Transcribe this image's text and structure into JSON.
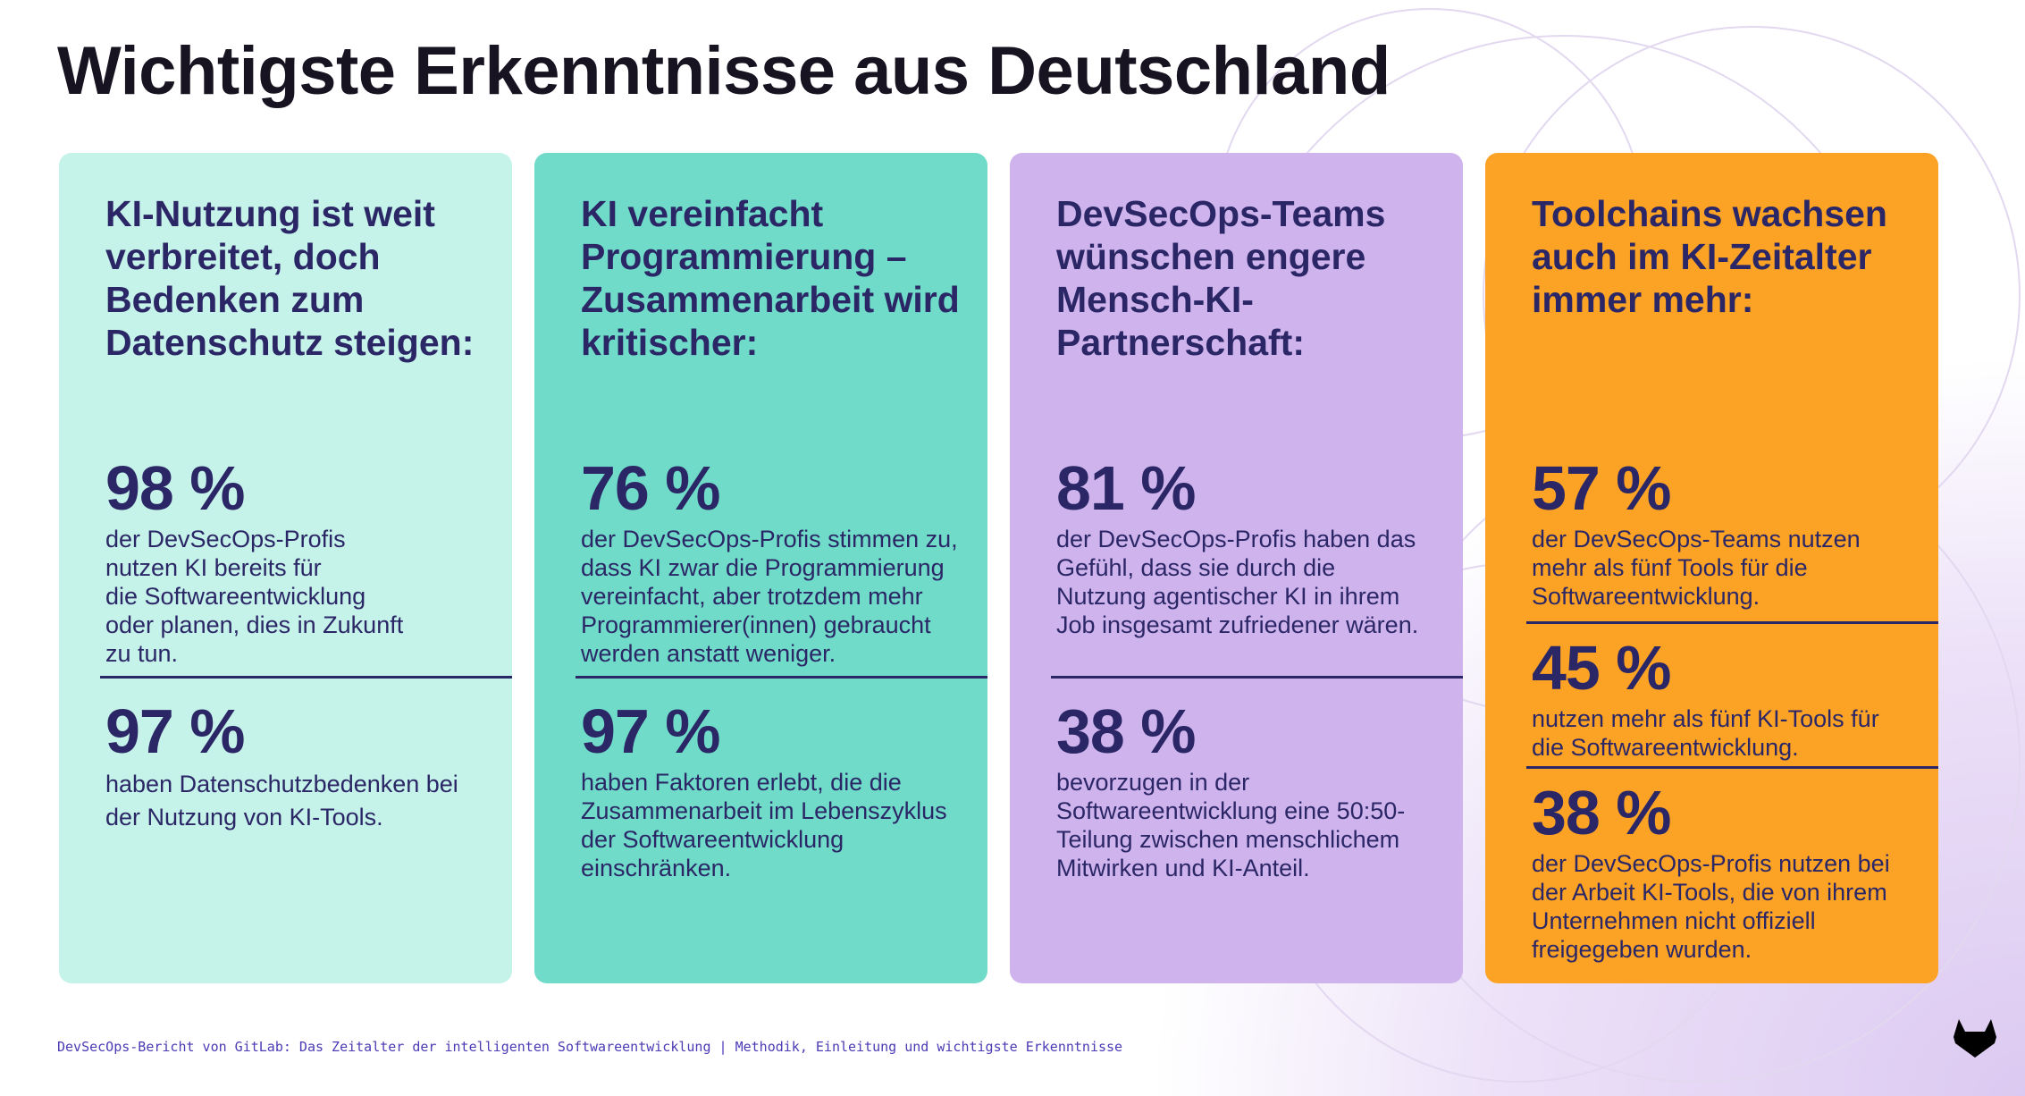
{
  "title": "Wichtigste Erkenntnisse aus Deutschland",
  "colors": {
    "card1": "#c5f2e9",
    "card2": "#6fdbc8",
    "card3": "#cfb3ed",
    "card4": "#fca326",
    "text": "#2b2766"
  },
  "cards": [
    {
      "heading": [
        "KI-Nutzung ist weit",
        "verbreitet, doch",
        "Bedenken zum",
        "Datenschutz steigen:"
      ],
      "stats": [
        {
          "value": "98 %",
          "text": [
            "der DevSecOps-Profis",
            "nutzen KI bereits für",
            "die Softwareentwicklung",
            "oder planen, dies in Zukunft",
            "zu tun."
          ]
        },
        {
          "value": "97 %",
          "text": [
            "haben Datenschutzbedenken bei",
            "der Nutzung von KI-Tools."
          ]
        }
      ]
    },
    {
      "heading": [
        "KI vereinfacht",
        "Programmierung –",
        "Zusammenarbeit wird",
        "kritischer:"
      ],
      "stats": [
        {
          "value": "76 %",
          "text": [
            "der DevSecOps-Profis stimmen zu,",
            "dass KI zwar die Programmierung",
            "vereinfacht, aber trotzdem mehr",
            "Programmierer(innen) gebraucht",
            "werden anstatt weniger."
          ]
        },
        {
          "value": "97 %",
          "text": [
            "haben Faktoren erlebt, die die",
            "Zusammenarbeit im Lebenszyklus",
            "der Softwareentwicklung",
            "einschränken."
          ]
        }
      ]
    },
    {
      "heading": [
        "DevSecOps-Teams",
        "wünschen engere",
        "Mensch-KI-",
        "Partnerschaft:"
      ],
      "stats": [
        {
          "value": "81 %",
          "text": [
            "der DevSecOps-Profis haben das",
            "Gefühl, dass sie durch die",
            "Nutzung agentischer KI in ihrem",
            "Job insgesamt zufriedener wären."
          ]
        },
        {
          "value": "38 %",
          "text": [
            "bevorzugen in der",
            "Softwareentwicklung eine 50:50-",
            "Teilung zwischen menschlichem",
            "Mitwirken und KI-Anteil."
          ]
        }
      ]
    },
    {
      "heading": [
        "Toolchains wachsen",
        "auch im KI-Zeitalter",
        "immer mehr:"
      ],
      "stats": [
        {
          "value": "57 %",
          "text": [
            "der DevSecOps-Teams nutzen",
            "mehr als fünf Tools für die",
            "Softwareentwicklung."
          ]
        },
        {
          "value": "45 %",
          "text": [
            "nutzen mehr als fünf KI-Tools für",
            "die Softwareentwicklung."
          ]
        },
        {
          "value": "38 %",
          "text": [
            "der DevSecOps-Profis nutzen bei",
            "der Arbeit KI-Tools, die von ihrem",
            "Unternehmen nicht offiziell",
            "freigegeben wurden."
          ]
        }
      ]
    }
  ],
  "footer": "DevSecOps-Bericht von GitLab: Das Zeitalter der intelligenten Softwareentwicklung | Methodik, Einleitung und wichtigste Erkenntnisse",
  "logo": {
    "icon": "gitlab-tanuki-icon",
    "text": "GitLab"
  }
}
